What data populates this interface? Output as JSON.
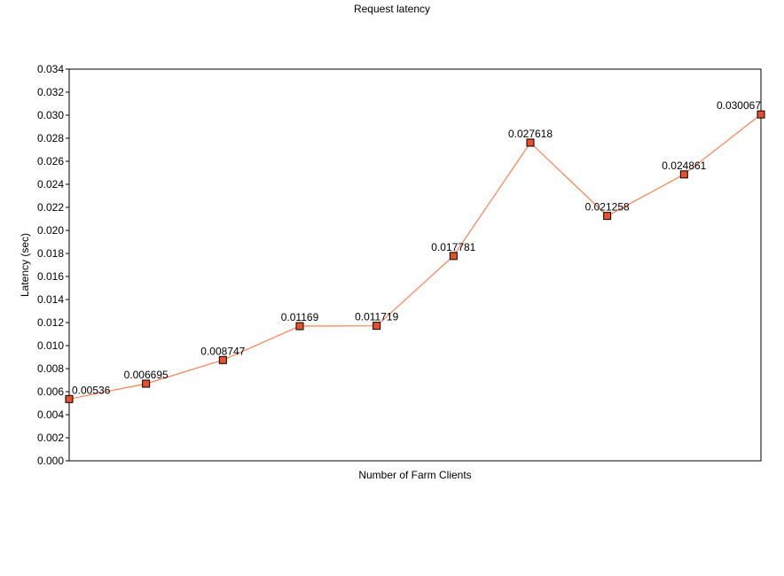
{
  "chart_data": {
    "type": "line",
    "title": "Request latency",
    "xlabel": "Number of Farm Clients",
    "ylabel": "Latency (sec)",
    "ylim": [
      0,
      0.034
    ],
    "y_ticks": [
      "0.000",
      "0.002",
      "0.004",
      "0.006",
      "0.008",
      "0.010",
      "0.012",
      "0.014",
      "0.016",
      "0.018",
      "0.020",
      "0.022",
      "0.024",
      "0.026",
      "0.028",
      "0.030",
      "0.032",
      "0.034"
    ],
    "grid": false,
    "series": [
      {
        "values": [
          0.00536,
          0.006695,
          0.008747,
          0.01169,
          0.011719,
          0.017781,
          0.027618,
          0.021258,
          0.024861,
          0.030067
        ],
        "labels": [
          "0.00536",
          "0.006695",
          "0.008747",
          "0.01169",
          "0.011719",
          "0.017781",
          "0.027618",
          "0.021258",
          "0.024861",
          "0.030067"
        ],
        "line_color": "#ff7f50",
        "marker_color": "#e8502c"
      }
    ]
  }
}
